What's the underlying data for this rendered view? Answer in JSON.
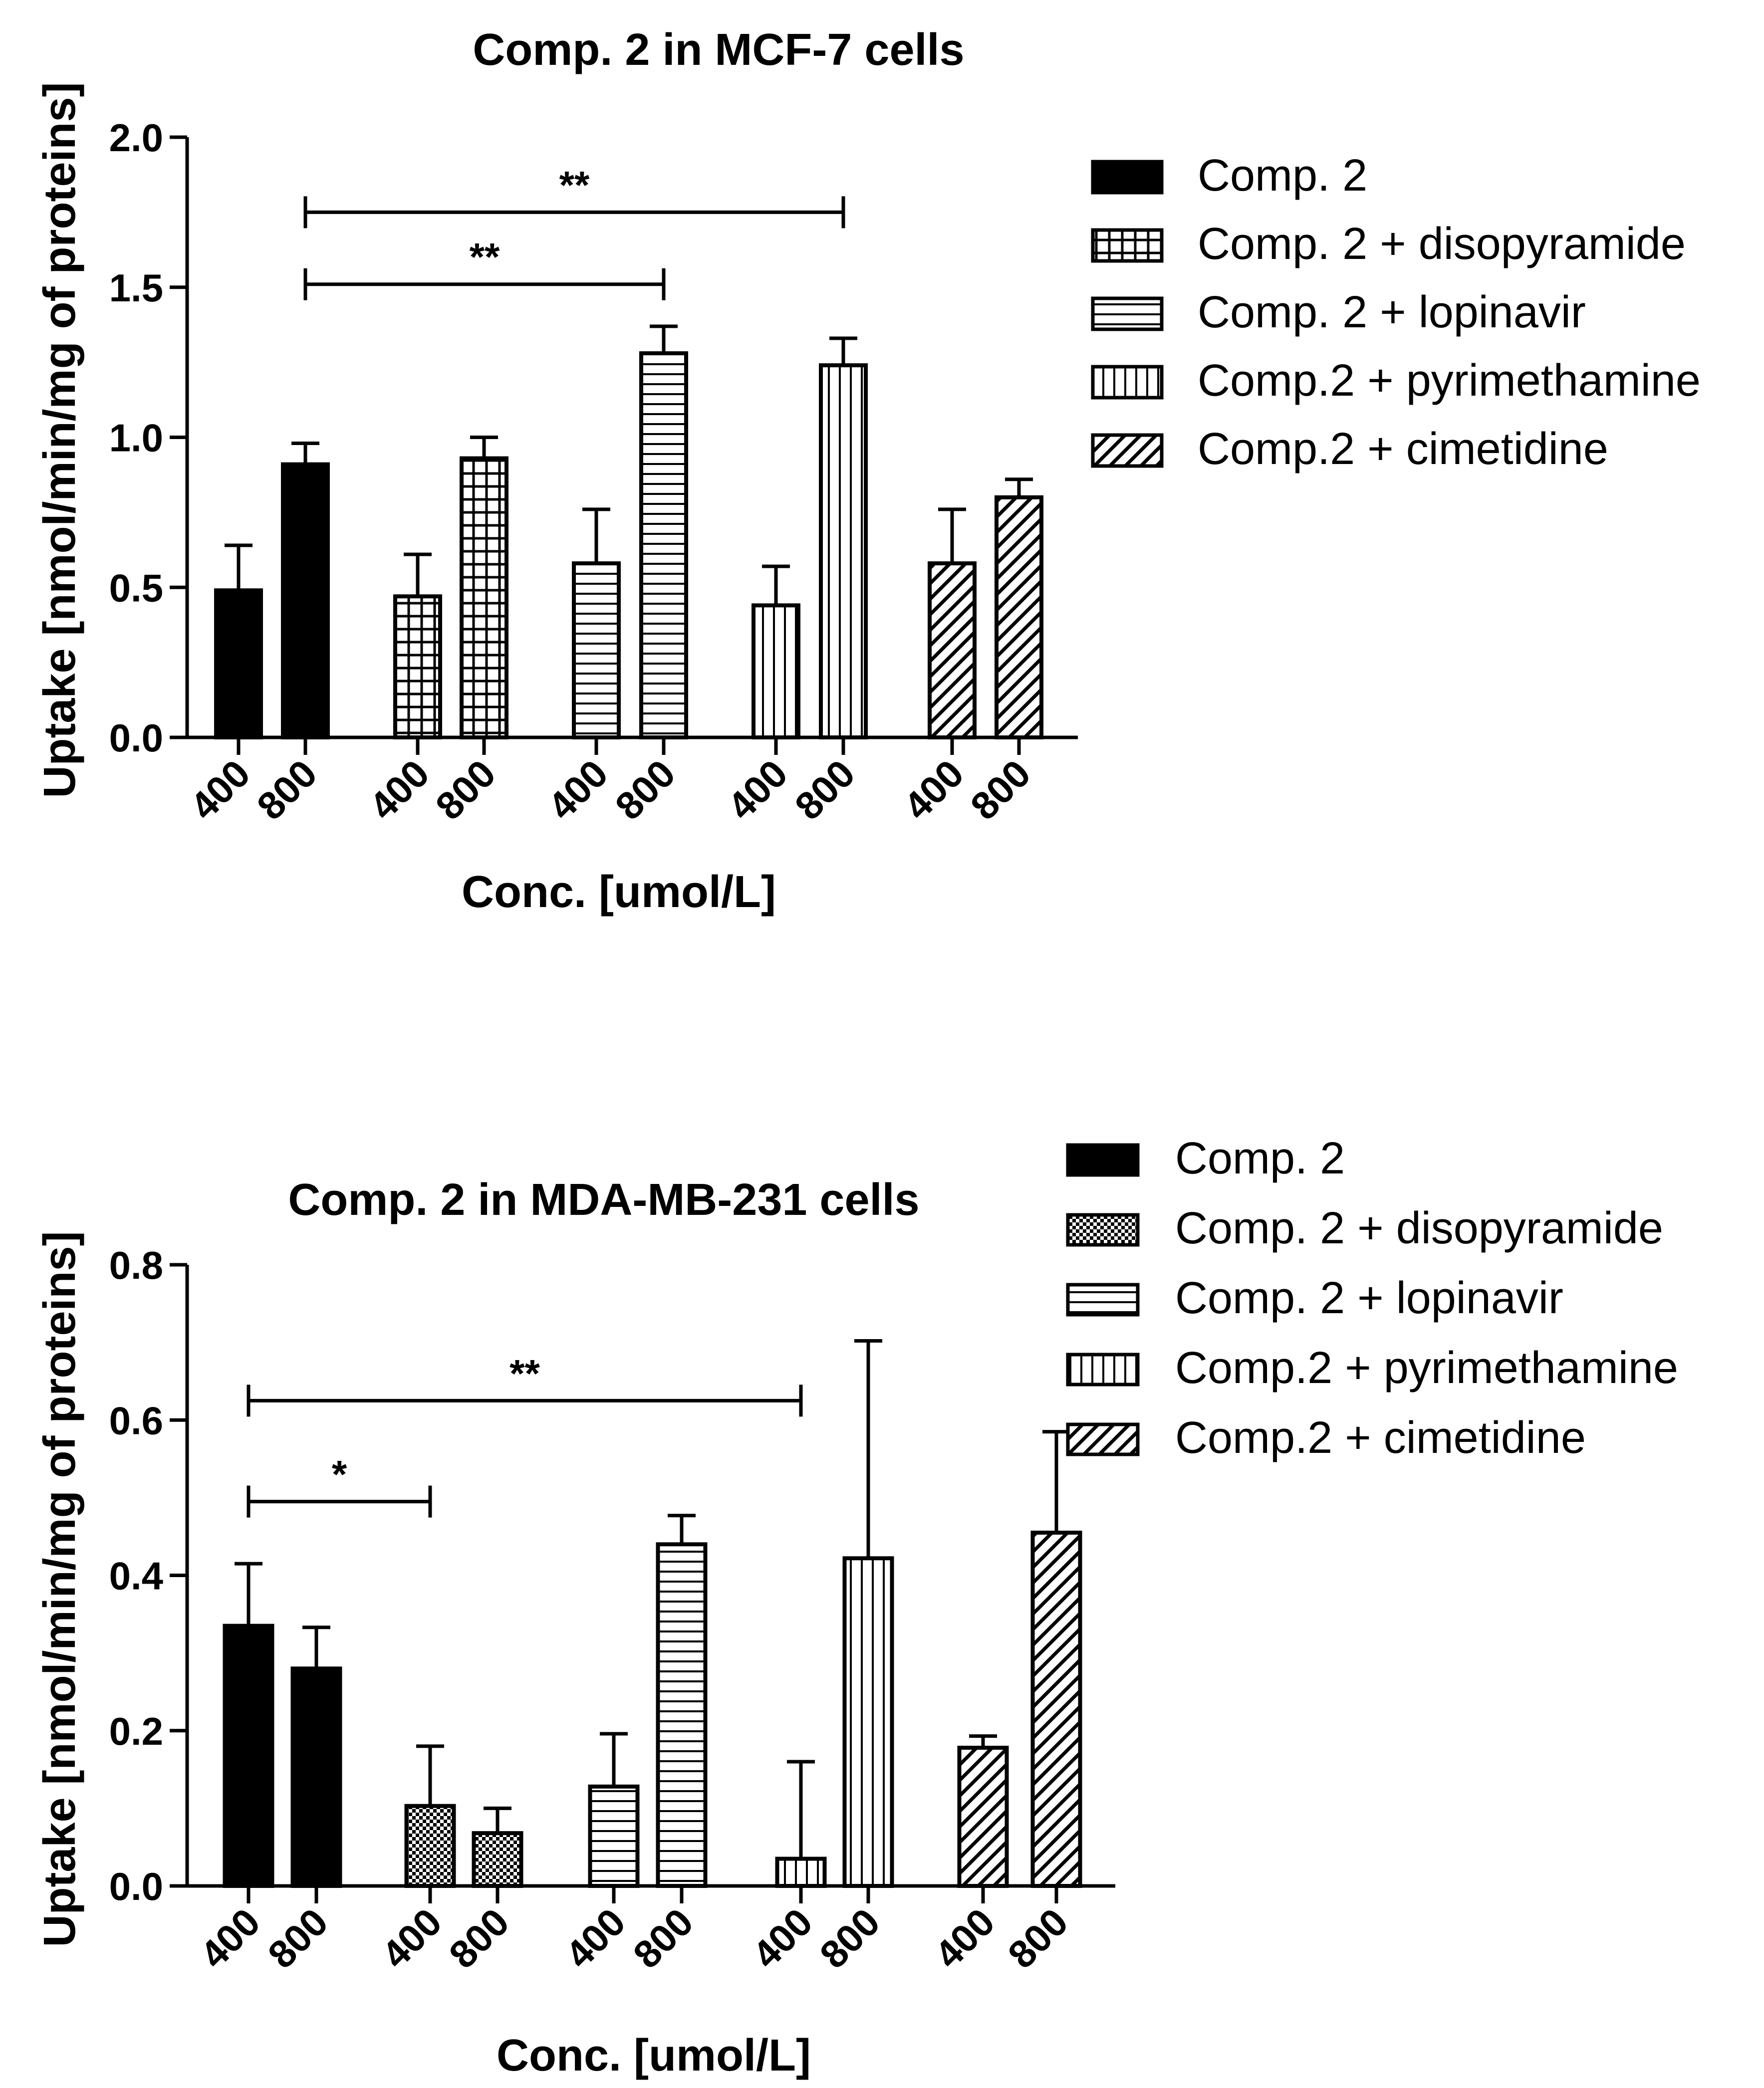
{
  "legend_patterns": [
    "solid",
    "grid",
    "hlines",
    "vlines",
    "diag"
  ],
  "chart_data": [
    {
      "type": "bar",
      "title": "Comp. 2 in MCF-7 cells",
      "xlabel": "Conc. [umol/L]",
      "ylabel": "Uptake [nmol/min/mg of proteins]",
      "ylim": [
        0,
        2.0
      ],
      "yticks": [
        "0.0",
        "0.5",
        "1.0",
        "1.5",
        "2.0"
      ],
      "categories": [
        "400",
        "800"
      ],
      "legend": [
        "Comp. 2",
        "Comp. 2 + disopyramide",
        "Comp. 2 + lopinavir",
        "Comp.2 + pyrimethamine",
        "Comp.2 + cimetidine"
      ],
      "legend_position": "right-top",
      "series": [
        {
          "name": "Comp. 2",
          "pattern": "solid",
          "values": [
            0.49,
            0.91
          ],
          "errors": [
            0.15,
            0.07
          ]
        },
        {
          "name": "Comp. 2 + disopyramide",
          "pattern": "grid",
          "values": [
            0.47,
            0.93
          ],
          "errors": [
            0.14,
            0.07
          ]
        },
        {
          "name": "Comp. 2 + lopinavir",
          "pattern": "hlines",
          "values": [
            0.58,
            1.28
          ],
          "errors": [
            0.18,
            0.09
          ]
        },
        {
          "name": "Comp.2 + pyrimethamine",
          "pattern": "vlines",
          "values": [
            0.44,
            1.24
          ],
          "errors": [
            0.13,
            0.09
          ]
        },
        {
          "name": "Comp.2 + cimetidine",
          "pattern": "diag",
          "values": [
            0.58,
            0.8
          ],
          "errors": [
            0.18,
            0.06
          ]
        }
      ],
      "significance": [
        {
          "label": "**",
          "from": [
            0,
            1
          ],
          "to": [
            3,
            1
          ],
          "y": 1.75
        },
        {
          "label": "**",
          "from": [
            0,
            1
          ],
          "to": [
            2,
            1
          ],
          "y": 1.51
        }
      ]
    },
    {
      "type": "bar",
      "title": "Comp. 2 in MDA-MB-231 cells",
      "xlabel": "Conc. [umol/L]",
      "ylabel": "Uptake [nmol/min/mg of proteins]",
      "ylim": [
        0,
        0.8
      ],
      "yticks": [
        "0.0",
        "0.2",
        "0.4",
        "0.6",
        "0.8"
      ],
      "categories": [
        "400",
        "800"
      ],
      "legend": [
        "Comp. 2",
        "Comp. 2 + disopyramide",
        "Comp. 2 + lopinavir",
        "Comp.2 + pyrimethamine",
        "Comp.2 + cimetidine"
      ],
      "legend_position": "right-top",
      "series": [
        {
          "name": "Comp. 2",
          "pattern": "solid",
          "values": [
            0.335,
            0.28
          ],
          "errors": [
            0.08,
            0.053
          ]
        },
        {
          "name": "Comp. 2 + disopyramide",
          "pattern": "checker",
          "values": [
            0.103,
            0.068
          ],
          "errors": [
            0.077,
            0.032
          ]
        },
        {
          "name": "Comp. 2 + lopinavir",
          "pattern": "hlines",
          "values": [
            0.128,
            0.44
          ],
          "errors": [
            0.068,
            0.037
          ]
        },
        {
          "name": "Comp.2 + pyrimethamine",
          "pattern": "vlines",
          "values": [
            0.035,
            0.422
          ],
          "errors": [
            0.125,
            0.28
          ]
        },
        {
          "name": "Comp.2 + cimetidine",
          "pattern": "diag",
          "values": [
            0.178,
            0.455
          ],
          "errors": [
            0.015,
            0.13
          ]
        }
      ],
      "significance": [
        {
          "label": "**",
          "from": [
            0,
            0
          ],
          "to": [
            3,
            0
          ],
          "y": 0.625
        },
        {
          "label": "*",
          "from": [
            0,
            0
          ],
          "to": [
            1,
            0
          ],
          "y": 0.495
        }
      ]
    }
  ]
}
